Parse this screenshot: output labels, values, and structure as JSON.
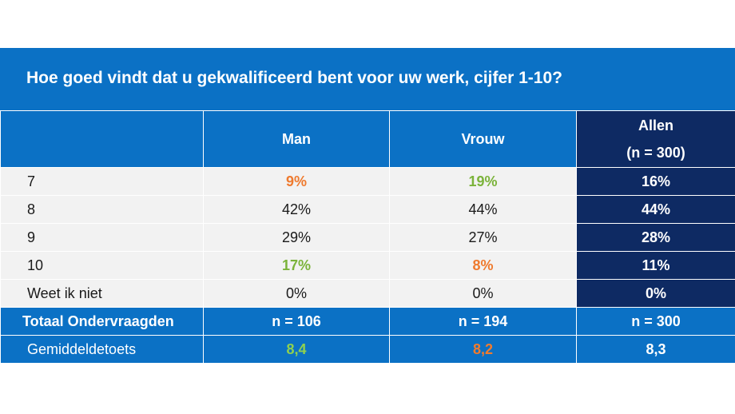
{
  "chart_data": {
    "type": "table",
    "title": "Hoe goed vindt dat u gekwalificeerd bent voor uw werk, cijfer 1-10?",
    "columns": [
      "",
      "Man",
      "Vrouw",
      "Allen\n(n = 300)"
    ],
    "columns_display": {
      "man": "Man",
      "vrouw": "Vrouw",
      "allen_line1": "Allen",
      "allen_line2": "(n = 300)"
    },
    "rows": [
      {
        "label": "7",
        "values": [
          "9%",
          "19%",
          "16%"
        ],
        "highlight": [
          "orange",
          "green",
          null
        ]
      },
      {
        "label": "8",
        "values": [
          "42%",
          "44%",
          "44%"
        ],
        "highlight": [
          null,
          null,
          null
        ]
      },
      {
        "label": "9",
        "values": [
          "29%",
          "27%",
          "28%"
        ],
        "highlight": [
          null,
          null,
          null
        ]
      },
      {
        "label": "10",
        "values": [
          "17%",
          "8%",
          "11%"
        ],
        "highlight": [
          "green",
          "orange",
          null
        ]
      },
      {
        "label": "Weet ik niet",
        "values": [
          "0%",
          "0%",
          "0%"
        ],
        "highlight": [
          null,
          null,
          null
        ]
      }
    ],
    "total_row": {
      "label": "Totaal Ondervraagden",
      "values": [
        "n = 106",
        "n = 194",
        "n = 300"
      ]
    },
    "mean_row": {
      "label": "Gemiddeldetoets",
      "values": [
        "8,4",
        "8,2",
        "8,3"
      ],
      "highlight": [
        "green",
        "orange",
        null
      ]
    }
  },
  "colors": {
    "header_blue": "#0b71c5",
    "navy": "#0e2a63",
    "row_gray": "#f2f2f2",
    "orange": "#ef7a2e",
    "green": "#7bb33a"
  }
}
